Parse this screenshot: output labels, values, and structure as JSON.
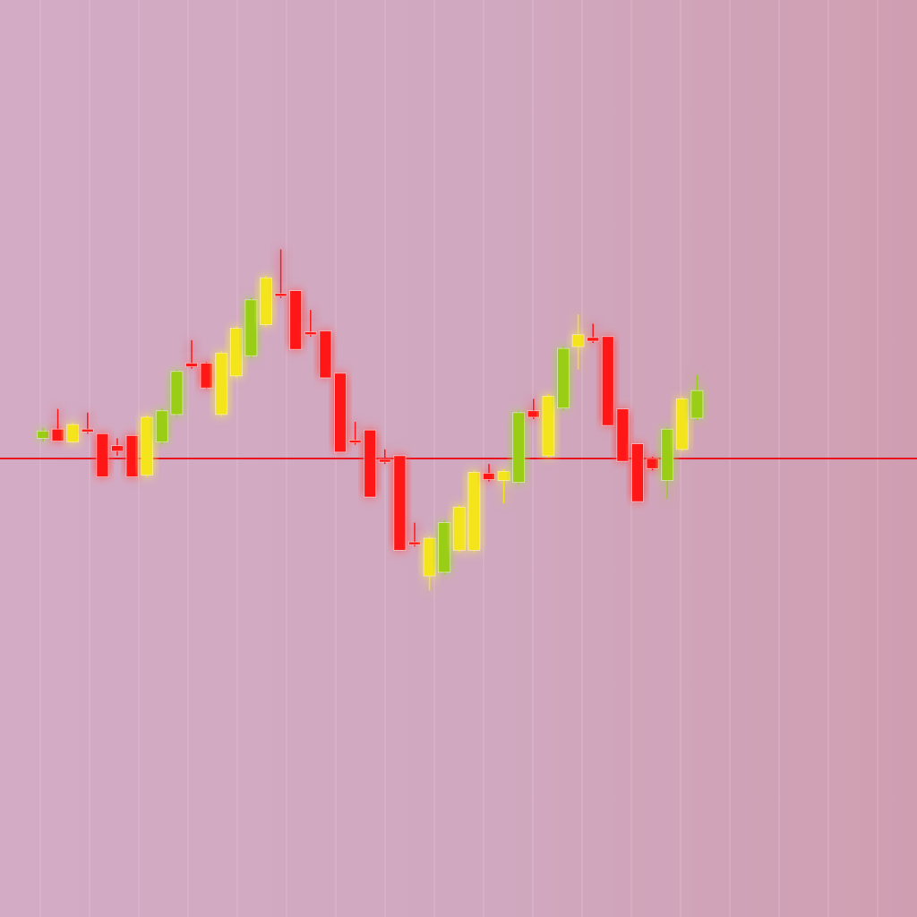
{
  "colors": {
    "background": "#d3abc4",
    "up_green": "#9acd16",
    "up_yellow": "#f4e41a",
    "down_red": "#ff1818",
    "baseline_red": "#e8101a",
    "gridline": "#e6c8d8"
  },
  "chart_data": {
    "type": "candlestick",
    "title": "",
    "xlabel": "",
    "ylabel": "",
    "grid": "vertical",
    "legend": "none",
    "ylim": [
      0,
      1000
    ],
    "baseline": 500,
    "candles": [
      {
        "o": 522,
        "c": 530,
        "h": 533,
        "l": 519,
        "color": "up_green"
      },
      {
        "o": 532,
        "c": 519,
        "h": 554,
        "l": 519,
        "color": "down_red"
      },
      {
        "o": 518,
        "c": 537,
        "h": 539,
        "l": 517,
        "color": "up_yellow"
      },
      {
        "o": 532,
        "c": 529,
        "h": 550,
        "l": 527,
        "color": "down_red"
      },
      {
        "o": 527,
        "c": 480,
        "h": 527,
        "l": 480,
        "color": "down_red"
      },
      {
        "o": 514,
        "c": 508,
        "h": 522,
        "l": 503,
        "color": "down_red"
      },
      {
        "o": 525,
        "c": 480,
        "h": 525,
        "l": 480,
        "color": "down_red"
      },
      {
        "o": 482,
        "c": 545,
        "h": 547,
        "l": 480,
        "color": "up_yellow"
      },
      {
        "o": 518,
        "c": 552,
        "h": 554,
        "l": 516,
        "color": "up_green"
      },
      {
        "o": 548,
        "c": 595,
        "h": 597,
        "l": 546,
        "color": "up_green"
      },
      {
        "o": 604,
        "c": 600,
        "h": 629,
        "l": 598,
        "color": "down_red"
      },
      {
        "o": 604,
        "c": 577,
        "h": 605,
        "l": 576,
        "color": "down_red"
      },
      {
        "o": 548,
        "c": 615,
        "h": 617,
        "l": 546,
        "color": "up_yellow"
      },
      {
        "o": 590,
        "c": 642,
        "h": 644,
        "l": 588,
        "color": "up_yellow"
      },
      {
        "o": 612,
        "c": 673,
        "h": 675,
        "l": 610,
        "color": "up_green"
      },
      {
        "o": 646,
        "c": 697,
        "h": 699,
        "l": 644,
        "color": "up_yellow"
      },
      {
        "o": 680,
        "c": 677,
        "h": 728,
        "l": 675,
        "color": "down_red"
      },
      {
        "o": 683,
        "c": 619,
        "h": 683,
        "l": 619,
        "color": "down_red"
      },
      {
        "o": 638,
        "c": 635,
        "h": 662,
        "l": 633,
        "color": "down_red"
      },
      {
        "o": 639,
        "c": 588,
        "h": 639,
        "l": 588,
        "color": "down_red"
      },
      {
        "o": 593,
        "c": 507,
        "h": 593,
        "l": 507,
        "color": "down_red"
      },
      {
        "o": 520,
        "c": 517,
        "h": 540,
        "l": 515,
        "color": "down_red"
      },
      {
        "o": 531,
        "c": 458,
        "h": 531,
        "l": 458,
        "color": "down_red"
      },
      {
        "o": 499,
        "c": 496,
        "h": 510,
        "l": 494,
        "color": "down_red"
      },
      {
        "o": 503,
        "c": 400,
        "h": 503,
        "l": 400,
        "color": "down_red"
      },
      {
        "o": 409,
        "c": 406,
        "h": 430,
        "l": 404,
        "color": "down_red"
      },
      {
        "o": 372,
        "c": 413,
        "h": 415,
        "l": 356,
        "color": "up_yellow"
      },
      {
        "o": 376,
        "c": 430,
        "h": 432,
        "l": 374,
        "color": "up_green"
      },
      {
        "o": 400,
        "c": 447,
        "h": 449,
        "l": 398,
        "color": "up_yellow"
      },
      {
        "o": 400,
        "c": 485,
        "h": 487,
        "l": 398,
        "color": "up_yellow"
      },
      {
        "o": 484,
        "c": 477,
        "h": 494,
        "l": 475,
        "color": "down_red"
      },
      {
        "o": 476,
        "c": 486,
        "h": 488,
        "l": 451,
        "color": "up_yellow"
      },
      {
        "o": 474,
        "c": 550,
        "h": 552,
        "l": 472,
        "color": "up_green"
      },
      {
        "o": 552,
        "c": 545,
        "h": 565,
        "l": 543,
        "color": "down_red"
      },
      {
        "o": 503,
        "c": 568,
        "h": 570,
        "l": 501,
        "color": "up_yellow"
      },
      {
        "o": 555,
        "c": 620,
        "h": 622,
        "l": 553,
        "color": "up_green"
      },
      {
        "o": 622,
        "c": 635,
        "h": 657,
        "l": 597,
        "color": "up_yellow"
      },
      {
        "o": 632,
        "c": 628,
        "h": 647,
        "l": 626,
        "color": "down_red"
      },
      {
        "o": 633,
        "c": 536,
        "h": 633,
        "l": 536,
        "color": "down_red"
      },
      {
        "o": 554,
        "c": 497,
        "h": 554,
        "l": 497,
        "color": "down_red"
      },
      {
        "o": 516,
        "c": 453,
        "h": 516,
        "l": 453,
        "color": "down_red"
      },
      {
        "o": 500,
        "c": 489,
        "h": 502,
        "l": 487,
        "color": "down_red"
      },
      {
        "o": 476,
        "c": 532,
        "h": 534,
        "l": 456,
        "color": "up_green"
      },
      {
        "o": 510,
        "c": 565,
        "h": 567,
        "l": 508,
        "color": "up_yellow"
      },
      {
        "o": 544,
        "c": 574,
        "h": 591,
        "l": 542,
        "color": "up_green"
      }
    ]
  }
}
